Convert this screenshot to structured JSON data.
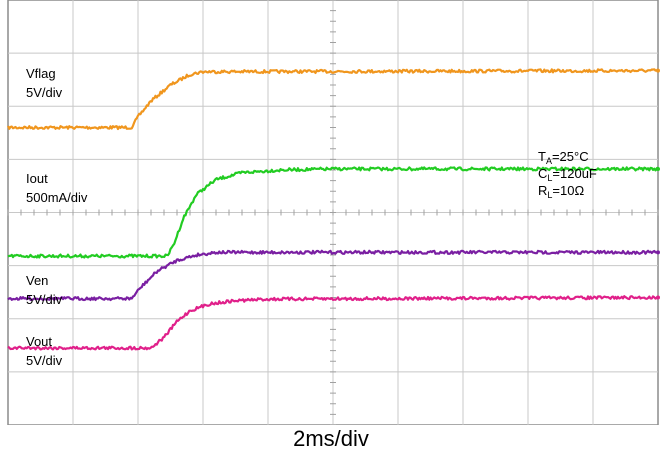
{
  "chart_data": {
    "type": "line",
    "title": "",
    "xlabel": "2ms/div",
    "grid": true,
    "divisions": {
      "x": 10,
      "y": 8
    },
    "x_unit": "div",
    "y_unit": "div",
    "series": [
      {
        "name": "Vflag",
        "scale": "5V/div",
        "color": "#f0961e",
        "x": [
          0,
          1.9,
          2.0,
          2.2,
          2.5,
          2.8,
          3.0,
          10
        ],
        "y": [
          1.6,
          1.6,
          1.8,
          2.1,
          2.4,
          2.6,
          2.65,
          2.67
        ]
      },
      {
        "name": "Iout",
        "scale": "500mA/div",
        "color": "#22cc22",
        "x": [
          0,
          2.45,
          2.55,
          2.7,
          2.9,
          3.2,
          3.6,
          4.2,
          5.0,
          10
        ],
        "y": [
          -0.82,
          -0.82,
          -0.6,
          -0.1,
          0.34,
          0.62,
          0.75,
          0.8,
          0.82,
          0.82
        ]
      },
      {
        "name": "Ven",
        "scale": "5V/div",
        "color": "#7a1fa2",
        "x": [
          0,
          1.9,
          2.05,
          2.3,
          2.6,
          2.9,
          3.2,
          10
        ],
        "y": [
          -1.62,
          -1.62,
          -1.4,
          -1.1,
          -0.9,
          -0.8,
          -0.75,
          -0.75
        ]
      },
      {
        "name": "Vout",
        "scale": "5V/div",
        "color": "#e0208a",
        "x": [
          0,
          2.2,
          2.4,
          2.6,
          2.8,
          3.1,
          3.5,
          4.0,
          10
        ],
        "y": [
          -2.55,
          -2.55,
          -2.35,
          -2.05,
          -1.85,
          -1.72,
          -1.66,
          -1.63,
          -1.6
        ]
      }
    ],
    "channel_labels": [
      {
        "name": "Vflag",
        "scale": "5V/div"
      },
      {
        "name": "Iout",
        "scale": "500mA/div"
      },
      {
        "name": "Ven",
        "scale": "5V/div"
      },
      {
        "name": "Vout",
        "scale": "5V/div"
      }
    ],
    "conditions": [
      {
        "sym": "T",
        "sub": "A",
        "rest": "=25°C"
      },
      {
        "sym": "C",
        "sub": "L",
        "rest": "=120uF"
      },
      {
        "sym": "R",
        "sub": "L",
        "rest": "=10Ω"
      }
    ]
  }
}
